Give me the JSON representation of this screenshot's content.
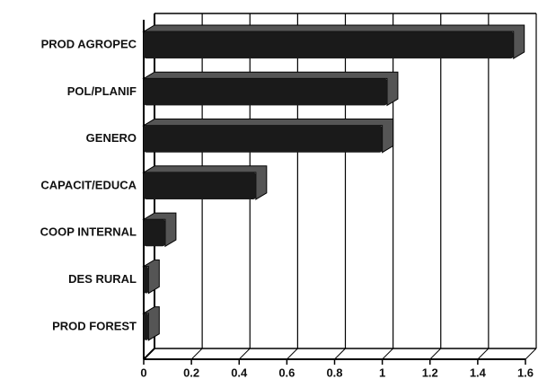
{
  "chart_data": {
    "type": "bar",
    "orientation": "horizontal",
    "categories": [
      "PROD AGROPEC",
      "POL/PLANIF",
      "GENERO",
      "CAPACIT/EDUCA",
      "COOP INTERNAL",
      "DES RURAL",
      "PROD FOREST"
    ],
    "values": [
      1.55,
      1.02,
      1.0,
      0.47,
      0.09,
      0.02,
      0.02
    ],
    "color": "#1a1a1a",
    "xlim": [
      0,
      1.6
    ],
    "xticks": [
      0,
      0.2,
      0.4,
      0.6,
      0.8,
      1,
      1.2,
      1.4,
      1.6
    ],
    "grid": true
  }
}
